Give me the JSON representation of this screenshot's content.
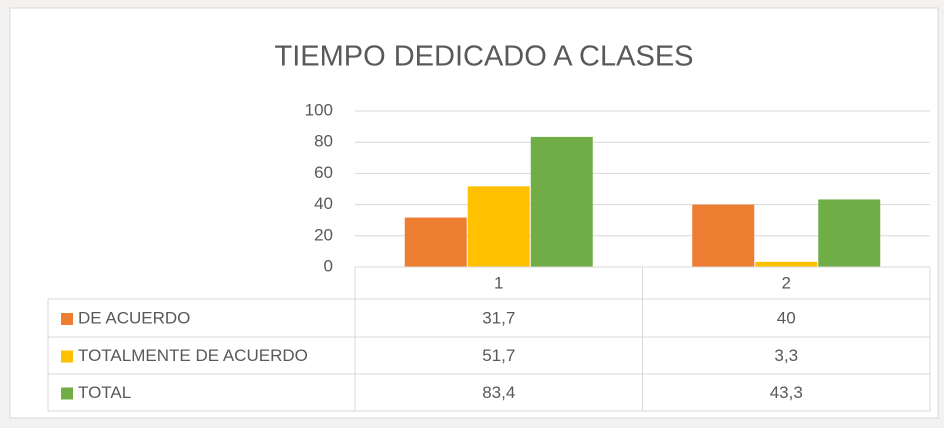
{
  "chart_data": {
    "type": "bar",
    "title": "TIEMPO DEDICADO A  CLASES",
    "categories": [
      "1",
      "2"
    ],
    "series": [
      {
        "name": "DE ACUERDO",
        "color": "#ED7D31",
        "values": [
          31.7,
          40
        ],
        "value_labels": [
          "31,7",
          "40"
        ]
      },
      {
        "name": "TOTALMENTE DE ACUERDO",
        "color": "#FFC000",
        "values": [
          51.7,
          3.3
        ],
        "value_labels": [
          "51,7",
          "3,3"
        ]
      },
      {
        "name": "TOTAL",
        "color": "#70AD47",
        "values": [
          83.4,
          43.3
        ],
        "value_labels": [
          "83,4",
          "43,3"
        ]
      }
    ],
    "ylim": [
      0,
      100
    ],
    "yticks": [
      0,
      20,
      40,
      60,
      80,
      100
    ],
    "grid": true,
    "legend": "table"
  }
}
